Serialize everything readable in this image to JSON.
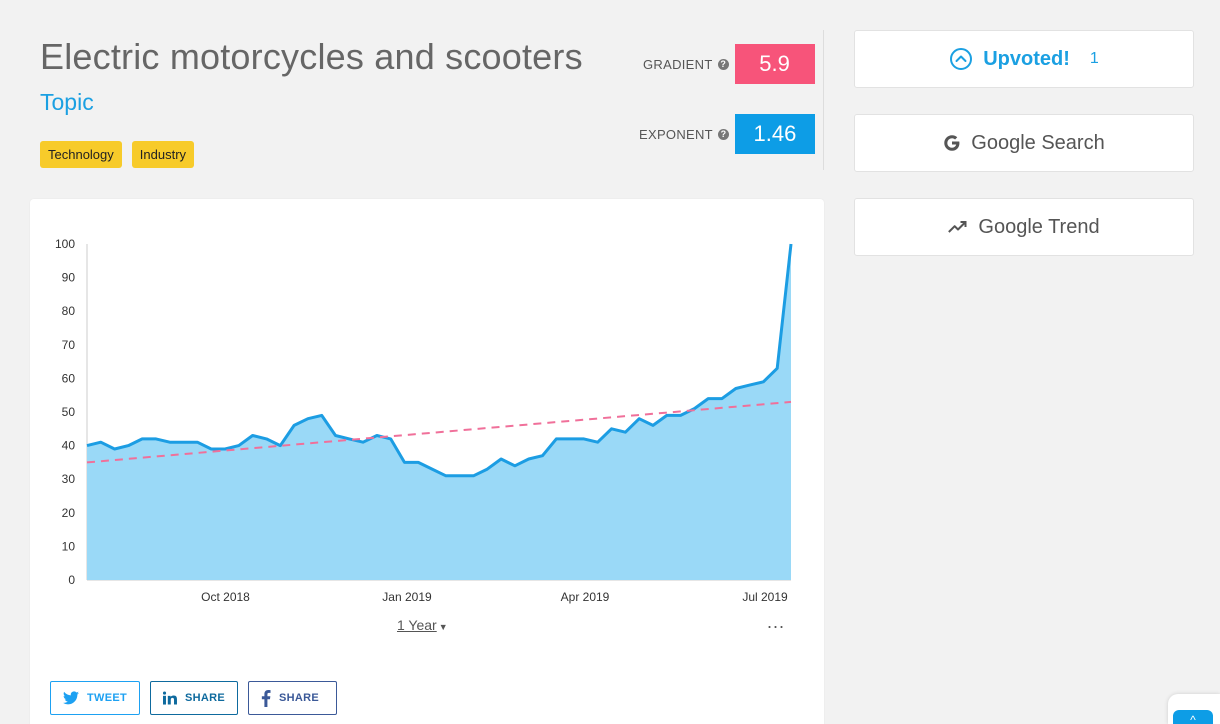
{
  "header": {
    "title": "Electric motorcycles and scooters",
    "subtitle": "Topic",
    "tags": [
      "Technology",
      "Industry"
    ]
  },
  "metrics": {
    "gradient_label": "GRADIENT",
    "gradient_value": "5.9",
    "exponent_label": "EXPONENT",
    "exponent_value": "1.46"
  },
  "sidebar": {
    "upvoted_label": "Upvoted!",
    "upvote_count": "1",
    "google_search_label": "Google Search",
    "google_trend_label": "Google Trend"
  },
  "chart_controls": {
    "range_label": "1 Year",
    "more_label": "..."
  },
  "share": {
    "tweet_label": "TWEET",
    "linkedin_label": "SHARE",
    "facebook_label": "SHARE"
  },
  "colors": {
    "gradient": "#f7547a",
    "exponent": "#0d9de6",
    "accent": "#1ba0e2",
    "area_fill": "#9ad9f7",
    "trend_line": "#f0709a",
    "tag": "#f7cb2a"
  },
  "chart_data": {
    "type": "area",
    "title": "",
    "xlabel": "",
    "ylabel": "",
    "ylim": [
      0,
      100
    ],
    "yticks": [
      0,
      10,
      20,
      30,
      40,
      50,
      60,
      70,
      80,
      90,
      100
    ],
    "xtick_labels": [
      "Oct 2018",
      "Jan 2019",
      "Apr 2019",
      "Jul 2019"
    ],
    "grid": false,
    "series": [
      {
        "values": [
          40,
          41,
          39,
          40,
          42,
          42,
          41,
          41,
          41,
          39,
          39,
          40,
          43,
          42,
          40,
          46,
          48,
          49,
          43,
          42,
          41,
          43,
          42,
          35,
          35,
          33,
          31,
          31,
          31,
          33,
          36,
          34,
          36,
          37,
          42,
          42,
          42,
          41,
          45,
          44,
          48,
          46,
          49,
          49,
          51,
          54,
          54,
          57,
          58,
          59,
          63,
          100
        ]
      }
    ],
    "trend": {
      "start": 35,
      "end": 53
    }
  }
}
